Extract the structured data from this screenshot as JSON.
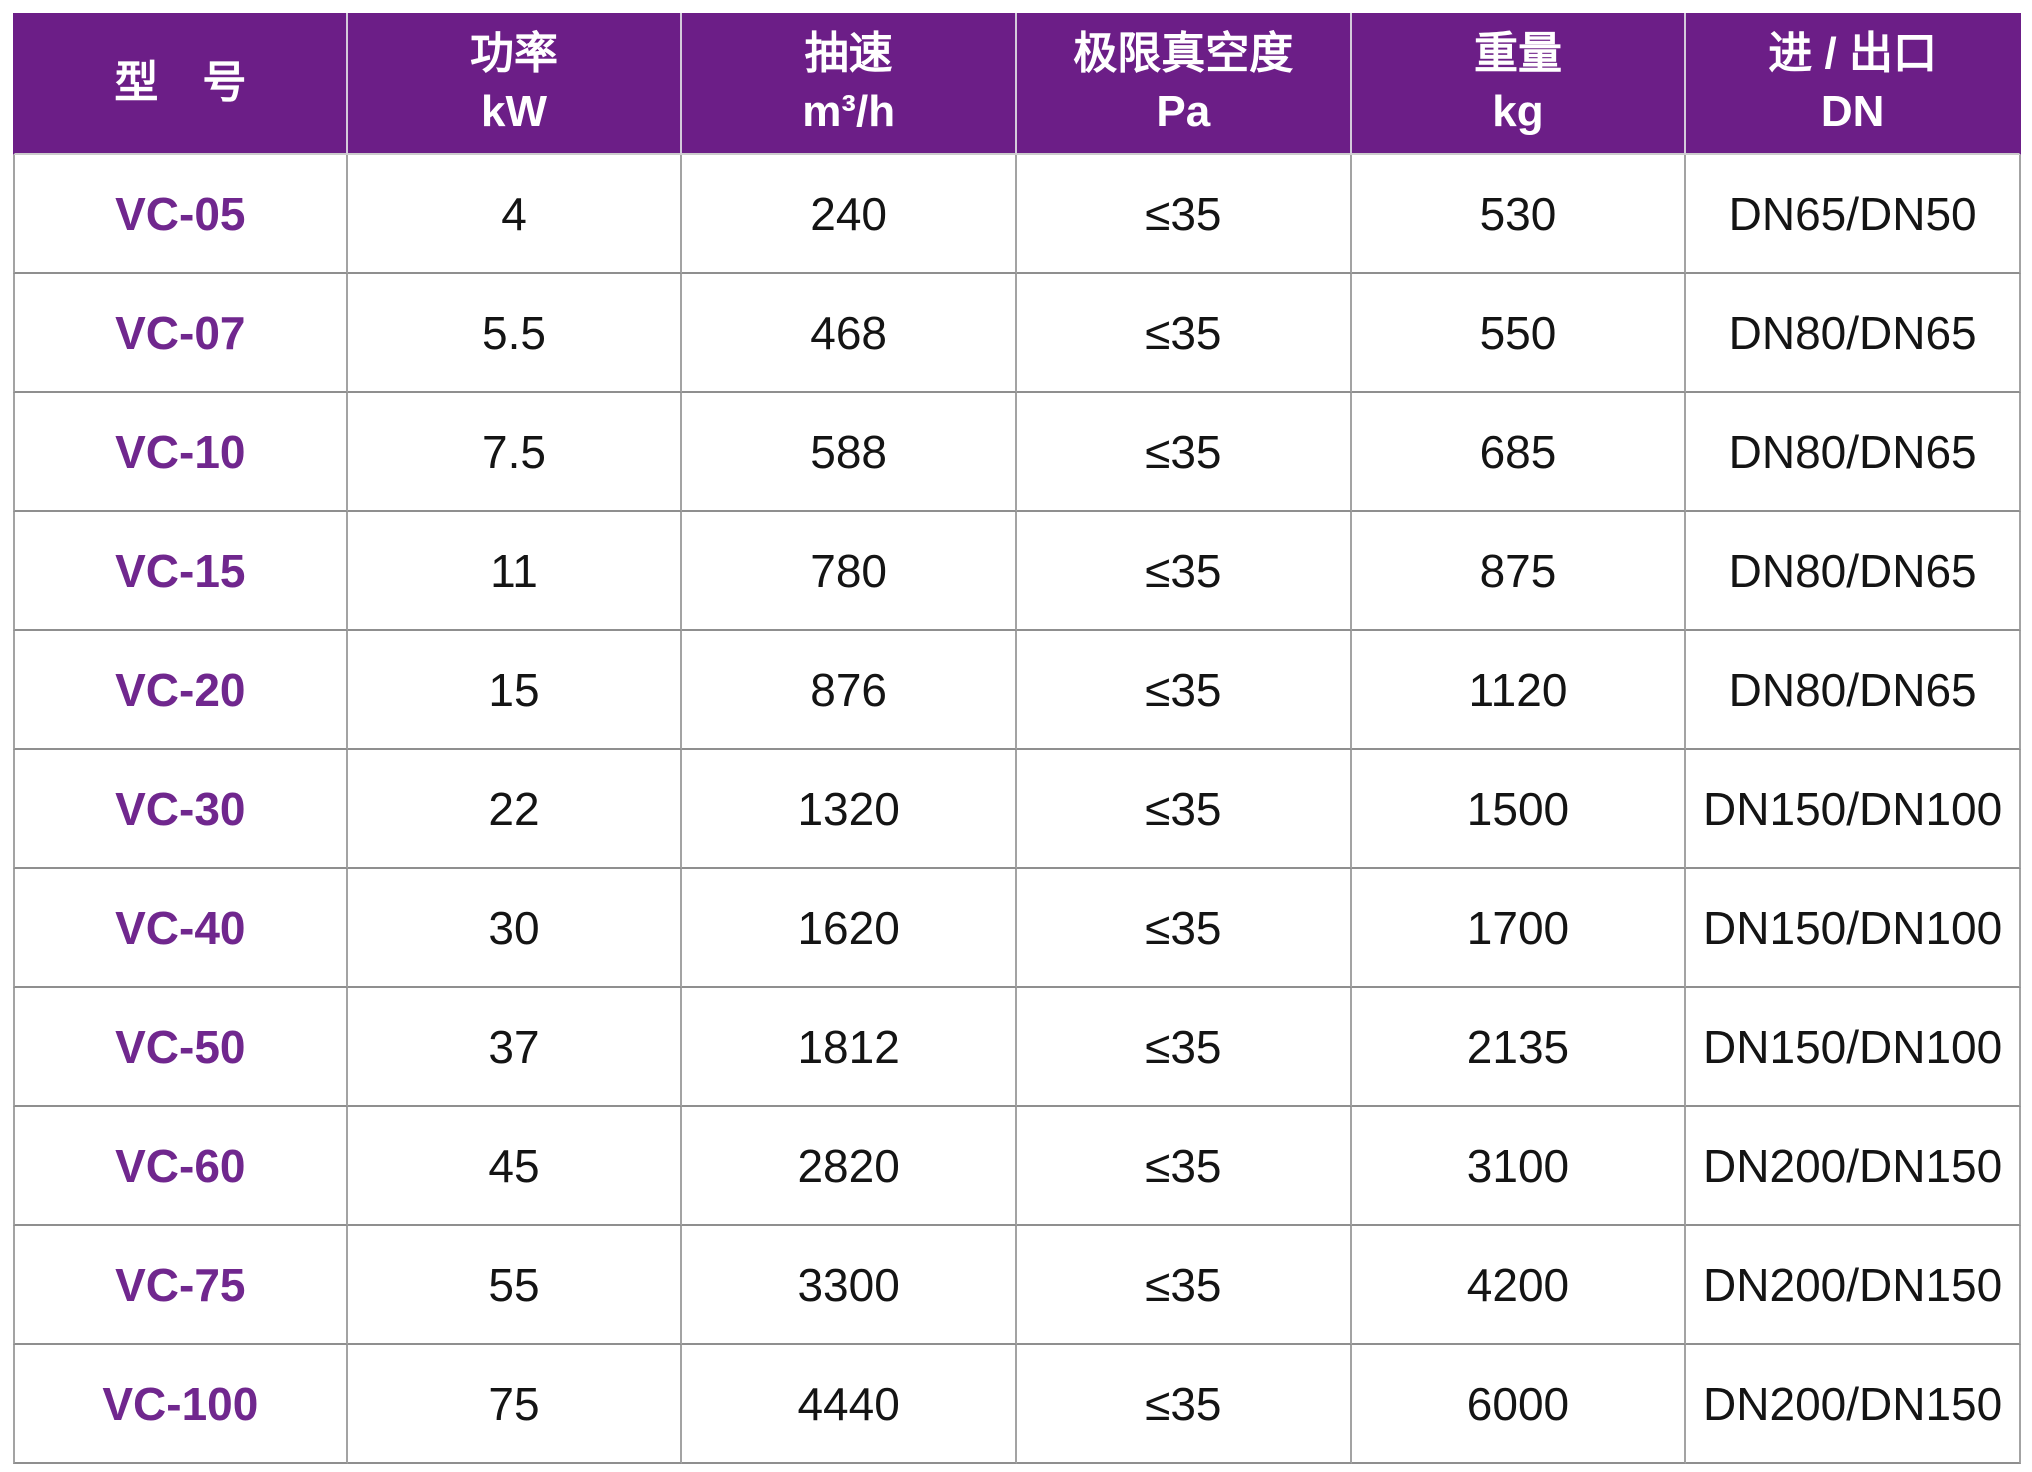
{
  "colors": {
    "header_bg": "#6C1E87",
    "header_text": "#ffffff",
    "model_text": "#70278E",
    "cell_text": "#141414",
    "grid_vertical": "#a3a3a3",
    "grid_horizontal": "#8f8f8f",
    "page_bg": "#ffffff"
  },
  "table": {
    "columns": [
      {
        "id": "model",
        "line1": "型　号",
        "line2": ""
      },
      {
        "id": "power",
        "line1": "功率",
        "line2": "kW"
      },
      {
        "id": "speed",
        "line1": "抽速",
        "line2": "m³/h"
      },
      {
        "id": "vacuum",
        "line1": "极限真空度",
        "line2": "Pa"
      },
      {
        "id": "weight",
        "line1": "重量",
        "line2": "kg"
      },
      {
        "id": "ports",
        "line1": "进 / 出口",
        "line2": "DN"
      }
    ],
    "rows": [
      {
        "model": "VC-05",
        "power": "4",
        "speed": "240",
        "vacuum": "≤35",
        "weight": "530",
        "ports": "DN65/DN50"
      },
      {
        "model": "VC-07",
        "power": "5.5",
        "speed": "468",
        "vacuum": "≤35",
        "weight": "550",
        "ports": "DN80/DN65"
      },
      {
        "model": "VC-10",
        "power": "7.5",
        "speed": "588",
        "vacuum": "≤35",
        "weight": "685",
        "ports": "DN80/DN65"
      },
      {
        "model": "VC-15",
        "power": "11",
        "speed": "780",
        "vacuum": "≤35",
        "weight": "875",
        "ports": "DN80/DN65"
      },
      {
        "model": "VC-20",
        "power": "15",
        "speed": "876",
        "vacuum": "≤35",
        "weight": "1120",
        "ports": "DN80/DN65"
      },
      {
        "model": "VC-30",
        "power": "22",
        "speed": "1320",
        "vacuum": "≤35",
        "weight": "1500",
        "ports": "DN150/DN100"
      },
      {
        "model": "VC-40",
        "power": "30",
        "speed": "1620",
        "vacuum": "≤35",
        "weight": "1700",
        "ports": "DN150/DN100"
      },
      {
        "model": "VC-50",
        "power": "37",
        "speed": "1812",
        "vacuum": "≤35",
        "weight": "2135",
        "ports": "DN150/DN100"
      },
      {
        "model": "VC-60",
        "power": "45",
        "speed": "2820",
        "vacuum": "≤35",
        "weight": "3100",
        "ports": "DN200/DN150"
      },
      {
        "model": "VC-75",
        "power": "55",
        "speed": "3300",
        "vacuum": "≤35",
        "weight": "4200",
        "ports": "DN200/DN150"
      },
      {
        "model": "VC-100",
        "power": "75",
        "speed": "4440",
        "vacuum": "≤35",
        "weight": "6000",
        "ports": "DN200/DN150"
      }
    ]
  }
}
